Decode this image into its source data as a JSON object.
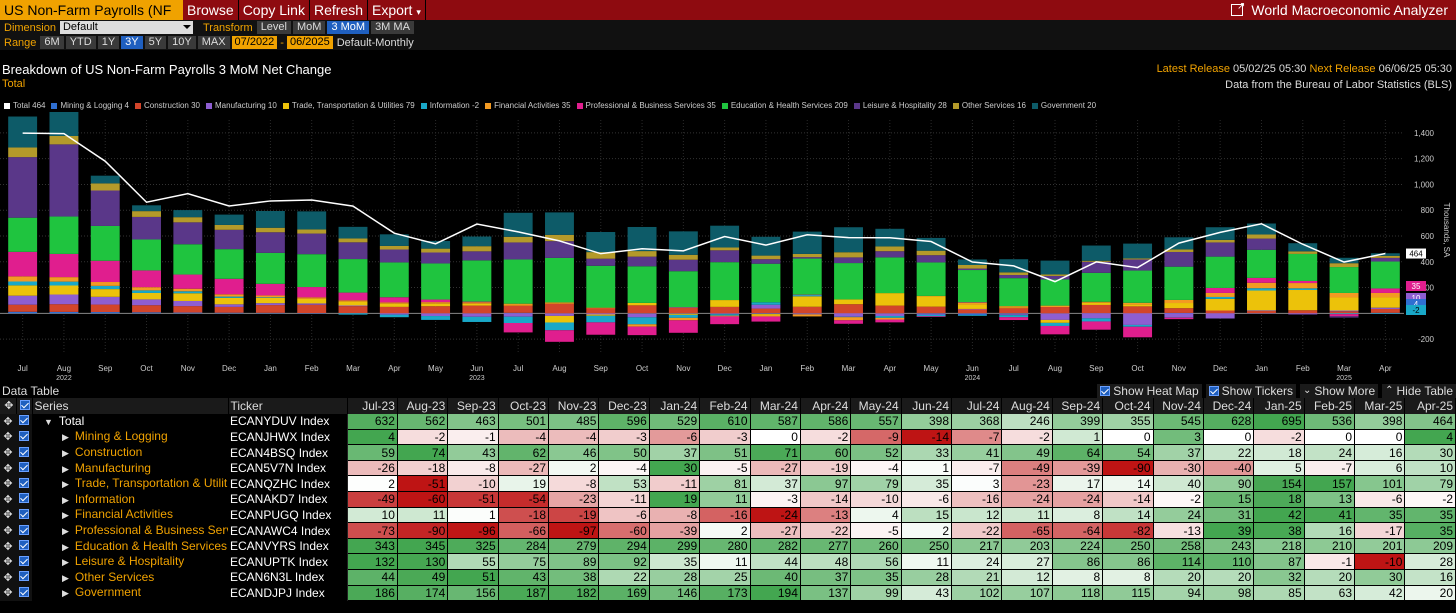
{
  "toolbar": {
    "title": "US Non-Farm Payrolls (NF",
    "browse": "Browse",
    "copy_link": "Copy Link",
    "refresh": "Refresh",
    "export": "Export",
    "app_name": "World Macroeconomic Analyzer"
  },
  "controls": {
    "dimension_label": "Dimension",
    "dimension_value": "Default",
    "transform_label": "Transform",
    "transforms": [
      "Level",
      "MoM",
      "3 MoM",
      "3M MA"
    ],
    "transform_selected": "3 MoM",
    "range_label": "Range",
    "ranges": [
      "6M",
      "YTD",
      "1Y",
      "3Y",
      "5Y",
      "10Y",
      "MAX"
    ],
    "range_selected": "3Y",
    "start": "07/2022",
    "dash": "-",
    "end": "06/2025",
    "frequency": "Default-Monthly"
  },
  "header": {
    "title": "Breakdown of US Non-Farm Payrolls 3 MoM Net Change",
    "subtitle": "Total",
    "latest_label": "Latest Release",
    "latest_value": "05/02/25 05:30",
    "next_label": "Next Release",
    "next_value": "06/06/25 05:30",
    "source": "Data from the Bureau of Labor Statistics (BLS)"
  },
  "colors": {
    "Total": "#ffffff",
    "Mining & Logging": "#2f6fd1",
    "Construction": "#d2452a",
    "Manufacturing": "#8e5ed1",
    "Trade, Transportation & Utilities": "#ecc20a",
    "Information": "#19a8c8",
    "Financial Activities": "#f39a22",
    "Professional & Business Services": "#e01e8e",
    "Education & Health Services": "#1fc43f",
    "Leisure & Hospitality": "#5a3789",
    "Other Services": "#b49a2a",
    "Government": "#0d5b68"
  },
  "legend": [
    {
      "name": "Total",
      "value": "464"
    },
    {
      "name": "Mining & Logging",
      "value": "4"
    },
    {
      "name": "Construction",
      "value": "30"
    },
    {
      "name": "Manufacturing",
      "value": "10"
    },
    {
      "name": "Trade, Transportation & Utilities",
      "value": "79"
    },
    {
      "name": "Information",
      "value": "-2"
    },
    {
      "name": "Financial Activities",
      "value": "35"
    },
    {
      "name": "Professional & Business Services",
      "value": "35"
    },
    {
      "name": "Education & Health Services",
      "value": "209"
    },
    {
      "name": "Leisure & Hospitality",
      "value": "28"
    },
    {
      "name": "Other Services",
      "value": "16"
    },
    {
      "name": "Government",
      "value": "20"
    }
  ],
  "chart_data": {
    "type": "bar",
    "stacked": true,
    "ylabel": "Thousands, SA",
    "ylim": [
      -300,
      1500
    ],
    "yticks": [
      -200,
      200,
      400,
      600,
      800,
      "1,000",
      "1,200",
      "1,400"
    ],
    "ytick_values": [
      -200,
      200,
      400,
      600,
      800,
      1000,
      1200,
      1400
    ],
    "x_labels": [
      "Jul",
      "Aug",
      "Sep",
      "Oct",
      "Nov",
      "Dec",
      "Jan",
      "Feb",
      "Mar",
      "Apr",
      "May",
      "Jun",
      "Jul",
      "Aug",
      "Sep",
      "Oct",
      "Nov",
      "Dec",
      "Jan",
      "Feb",
      "Mar",
      "Apr",
      "May",
      "Jun",
      "Jul",
      "Aug",
      "Sep",
      "Oct",
      "Nov",
      "Dec",
      "Jan",
      "Feb",
      "Mar",
      "Apr"
    ],
    "years": [
      {
        "label": "2022",
        "at": "Aug"
      },
      {
        "label": "2023",
        "at": "Jun"
      },
      {
        "label": "2024",
        "at": "Jun"
      },
      {
        "label": "2025",
        "at": "Mar"
      }
    ],
    "series": [
      {
        "name": "Mining & Logging",
        "values": [
          12,
          11,
          10,
          8,
          6,
          5,
          4,
          2,
          1,
          0,
          -1,
          -2,
          4,
          -2,
          -1,
          -4,
          -4,
          -3,
          -6,
          -3,
          0,
          -2,
          -9,
          -14,
          -7,
          -2,
          1,
          0,
          3,
          0,
          -2,
          0,
          0,
          4
        ]
      },
      {
        "name": "Construction",
        "values": [
          55,
          60,
          58,
          55,
          50,
          45,
          60,
          65,
          55,
          50,
          55,
          60,
          59,
          74,
          43,
          62,
          46,
          50,
          37,
          51,
          71,
          60,
          52,
          33,
          41,
          49,
          64,
          54,
          37,
          22,
          18,
          24,
          16,
          30
        ]
      },
      {
        "name": "Manufacturing",
        "values": [
          70,
          75,
          60,
          45,
          40,
          20,
          15,
          10,
          5,
          -10,
          -20,
          -25,
          -26,
          -18,
          -8,
          -27,
          2,
          -4,
          30,
          -5,
          -27,
          -19,
          -4,
          1,
          -7,
          -49,
          -39,
          -90,
          -30,
          -40,
          5,
          -7,
          6,
          10
        ]
      },
      {
        "name": "Trade, Transportation & Utilities",
        "values": [
          80,
          70,
          60,
          50,
          60,
          50,
          40,
          35,
          30,
          25,
          20,
          15,
          2,
          -51,
          -10,
          19,
          -8,
          53,
          -11,
          81,
          37,
          97,
          79,
          35,
          3,
          -23,
          17,
          14,
          40,
          90,
          154,
          157,
          101,
          79
        ]
      },
      {
        "name": "Information",
        "values": [
          30,
          30,
          25,
          20,
          15,
          10,
          5,
          0,
          -10,
          -20,
          -30,
          -40,
          -49,
          -60,
          -51,
          -54,
          -23,
          -11,
          19,
          11,
          -3,
          -14,
          -10,
          -6,
          -16,
          -24,
          -24,
          -14,
          -2,
          15,
          18,
          13,
          -6,
          -2
        ]
      },
      {
        "name": "Financial Activities",
        "values": [
          40,
          35,
          30,
          25,
          20,
          18,
          15,
          12,
          10,
          10,
          12,
          11,
          10,
          11,
          1,
          -18,
          -19,
          -6,
          -8,
          -16,
          -24,
          -13,
          4,
          15,
          12,
          11,
          8,
          14,
          24,
          31,
          42,
          41,
          35,
          35
        ]
      },
      {
        "name": "Professional & Business Services",
        "values": [
          190,
          180,
          165,
          130,
          110,
          120,
          90,
          80,
          60,
          40,
          20,
          5,
          -73,
          -90,
          -96,
          -66,
          -97,
          -60,
          -39,
          2,
          -27,
          -22,
          -5,
          2,
          -22,
          -65,
          -64,
          -82,
          -13,
          39,
          38,
          16,
          -17,
          35
        ]
      },
      {
        "name": "Education & Health Services",
        "values": [
          265,
          290,
          270,
          240,
          235,
          230,
          240,
          255,
          260,
          270,
          280,
          320,
          343,
          345,
          325,
          284,
          279,
          294,
          299,
          280,
          282,
          277,
          260,
          250,
          217,
          203,
          224,
          250,
          258,
          243,
          218,
          210,
          201,
          209
        ]
      },
      {
        "name": "Leisure & Hospitality",
        "values": [
          470,
          560,
          275,
          175,
          170,
          150,
          160,
          160,
          130,
          100,
          85,
          70,
          132,
          130,
          55,
          75,
          89,
          92,
          35,
          11,
          44,
          48,
          56,
          11,
          24,
          27,
          86,
          86,
          114,
          110,
          87,
          -1,
          -10,
          28
        ]
      },
      {
        "name": "Other Services",
        "values": [
          75,
          65,
          55,
          45,
          40,
          38,
          35,
          32,
          30,
          28,
          30,
          40,
          44,
          49,
          51,
          43,
          38,
          22,
          28,
          25,
          40,
          37,
          35,
          28,
          21,
          12,
          8,
          8,
          20,
          20,
          32,
          20,
          30,
          16
        ]
      },
      {
        "name": "Government",
        "values": [
          240,
          190,
          60,
          45,
          55,
          80,
          130,
          140,
          90,
          90,
          60,
          75,
          186,
          174,
          156,
          187,
          182,
          169,
          146,
          173,
          194,
          137,
          99,
          43,
          102,
          107,
          118,
          115,
          94,
          98,
          85,
          63,
          42,
          20
        ]
      }
    ],
    "total": [
      1398,
      1394,
      1180,
      862,
      929,
      833,
      872,
      879,
      832,
      622,
      539,
      693,
      632,
      562,
      463,
      501,
      485,
      596,
      529,
      610,
      587,
      586,
      557,
      398,
      368,
      246,
      399,
      355,
      545,
      628,
      695,
      536,
      398,
      464
    ],
    "right_labels": {
      "total": "464",
      "v1": "35",
      "v2": "10",
      "v3": "4",
      "v4": "-2"
    }
  },
  "table": {
    "title": "Data Table",
    "controls": {
      "heatmap": "Show Heat Map",
      "tickers": "Show Tickers",
      "more": "Show More",
      "hide": "Hide Table"
    },
    "col_series": "Series",
    "col_ticker": "Ticker",
    "months": [
      "Jul-23",
      "Aug-23",
      "Sep-23",
      "Oct-23",
      "Nov-23",
      "Dec-23",
      "Jan-24",
      "Feb-24",
      "Mar-24",
      "Apr-24",
      "May-24",
      "Jun-24",
      "Jul-24",
      "Aug-24",
      "Sep-24",
      "Oct-24",
      "Nov-24",
      "Dec-24",
      "Jan-25",
      "Feb-25",
      "Mar-25",
      "Apr-25"
    ],
    "rows": [
      {
        "name": "Total",
        "ticker": "ECANYDUV Index",
        "values": [
          632,
          562,
          463,
          501,
          485,
          596,
          529,
          610,
          587,
          586,
          557,
          398,
          368,
          246,
          399,
          355,
          545,
          628,
          695,
          536,
          398,
          464
        ]
      },
      {
        "name": "Mining & Logging",
        "ticker": "ECANJHWX Index",
        "values": [
          4,
          -2,
          -1,
          -4,
          -4,
          -3,
          -6,
          -3,
          0,
          -2,
          -9,
          -14,
          -7,
          -2,
          1,
          0,
          3,
          0,
          -2,
          0,
          0,
          4
        ]
      },
      {
        "name": "Construction",
        "ticker": "ECAN4BSQ Index",
        "values": [
          59,
          74,
          43,
          62,
          46,
          50,
          37,
          51,
          71,
          60,
          52,
          33,
          41,
          49,
          64,
          54,
          37,
          22,
          18,
          24,
          16,
          30
        ]
      },
      {
        "name": "Manufacturing",
        "ticker": "ECAN5V7N Index",
        "values": [
          -26,
          -18,
          -8,
          -27,
          2,
          -4,
          30,
          -5,
          -27,
          -19,
          -4,
          1,
          -7,
          -49,
          -39,
          -90,
          -30,
          -40,
          5,
          -7,
          6,
          10
        ]
      },
      {
        "name": "Trade, Transportation & Utilit...",
        "ticker": "ECANQZHC Index",
        "values": [
          2,
          -51,
          -10,
          19,
          -8,
          53,
          -11,
          81,
          37,
          97,
          79,
          35,
          3,
          -23,
          17,
          14,
          40,
          90,
          154,
          157,
          101,
          79
        ]
      },
      {
        "name": "Information",
        "ticker": "ECANAKD7 Index",
        "values": [
          -49,
          -60,
          -51,
          -54,
          -23,
          -11,
          19,
          11,
          -3,
          -14,
          -10,
          -6,
          -16,
          -24,
          -24,
          -14,
          -2,
          15,
          18,
          13,
          -6,
          -2
        ]
      },
      {
        "name": "Financial Activities",
        "ticker": "ECANPUGQ Index",
        "values": [
          10,
          11,
          1,
          -18,
          -19,
          -6,
          -8,
          -16,
          -24,
          -13,
          4,
          15,
          12,
          11,
          8,
          14,
          24,
          31,
          42,
          41,
          35,
          35
        ]
      },
      {
        "name": "Professional & Business Serv...",
        "ticker": "ECANAWC4 Index",
        "values": [
          -73,
          -90,
          -96,
          -66,
          -97,
          -60,
          -39,
          2,
          -27,
          -22,
          -5,
          2,
          -22,
          -65,
          -64,
          -82,
          -13,
          39,
          38,
          16,
          -17,
          35
        ]
      },
      {
        "name": "Education & Health Services",
        "ticker": "ECANVYRS Index",
        "values": [
          343,
          345,
          325,
          284,
          279,
          294,
          299,
          280,
          282,
          277,
          260,
          250,
          217,
          203,
          224,
          250,
          258,
          243,
          218,
          210,
          201,
          209
        ]
      },
      {
        "name": "Leisure & Hospitality",
        "ticker": "ECANUPTK Index",
        "values": [
          132,
          130,
          55,
          75,
          89,
          92,
          35,
          11,
          44,
          48,
          56,
          11,
          24,
          27,
          86,
          86,
          114,
          110,
          87,
          -1,
          -10,
          28
        ]
      },
      {
        "name": "Other Services",
        "ticker": "ECAN6N3L Index",
        "values": [
          44,
          49,
          51,
          43,
          38,
          22,
          28,
          25,
          40,
          37,
          35,
          28,
          21,
          12,
          8,
          8,
          20,
          20,
          32,
          20,
          30,
          16
        ]
      },
      {
        "name": "Government",
        "ticker": "ECANDJPJ Index",
        "values": [
          186,
          174,
          156,
          187,
          182,
          169,
          146,
          173,
          194,
          137,
          99,
          43,
          102,
          107,
          118,
          115,
          94,
          98,
          85,
          63,
          42,
          20
        ]
      }
    ]
  }
}
